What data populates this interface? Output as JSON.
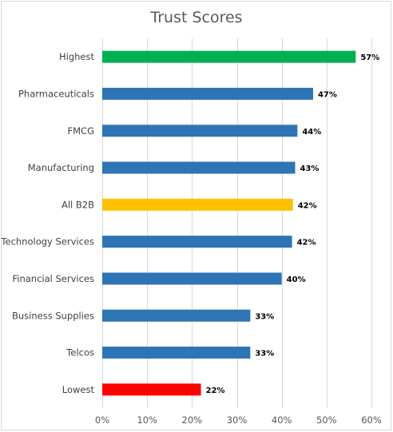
{
  "chart_data": {
    "type": "bar",
    "orientation": "horizontal",
    "title": "Trust Scores",
    "xlabel": "",
    "ylabel": "",
    "xlim": [
      0,
      60
    ],
    "x_ticks": [
      0,
      10,
      20,
      30,
      40,
      50,
      60
    ],
    "x_tick_labels": [
      "0%",
      "10%",
      "20%",
      "30%",
      "40%",
      "50%",
      "60%"
    ],
    "grid": true,
    "legend": "none",
    "categories": [
      "Highest",
      "Pharmaceuticals",
      "FMCG",
      "Manufacturing",
      "All B2B",
      "Technology Services",
      "Financial Services",
      "Business Supplies",
      "Telcos",
      "Lowest"
    ],
    "values": [
      56.5,
      47,
      43.5,
      43,
      42.5,
      42.3,
      40,
      33,
      33,
      22
    ],
    "data_labels": [
      "57%",
      "47%",
      "44%",
      "43%",
      "42%",
      "42%",
      "40%",
      "33%",
      "33%",
      "22%"
    ],
    "colors": [
      "#00b050",
      "#2e75b6",
      "#2e75b6",
      "#2e75b6",
      "#ffc000",
      "#2e75b6",
      "#2e75b6",
      "#2e75b6",
      "#2e75b6",
      "#ff0000"
    ]
  }
}
